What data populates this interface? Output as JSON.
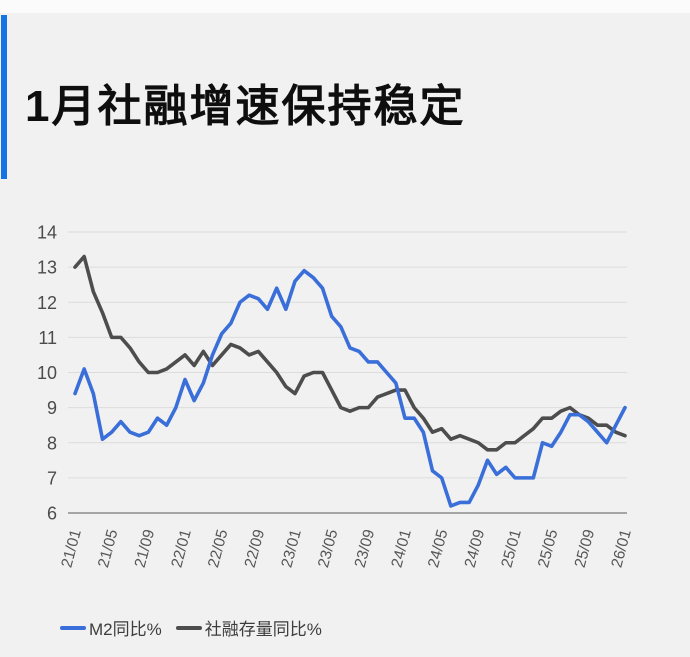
{
  "page": {
    "background": "#f1f1f2",
    "top_strip_color": "#fbfbfb"
  },
  "header": {
    "title": "1月社融增速保持稳定",
    "accent_color": "#1474e6"
  },
  "chart_data": {
    "type": "line",
    "title": "1月社融增速保持稳定",
    "xlabel": "",
    "ylabel": "",
    "ylim": [
      6,
      14
    ],
    "y_ticks": [
      6,
      7,
      8,
      9,
      10,
      11,
      12,
      13,
      14
    ],
    "grid": "horizontal",
    "grid_color": "#dcdcdd",
    "axis_color": "#8c8c8c",
    "tick_label_color": "#4c4c4c",
    "legend_position": "bottom-left",
    "x": [
      "21/01",
      "21/02",
      "21/03",
      "21/04",
      "21/05",
      "21/06",
      "21/07",
      "21/08",
      "21/09",
      "21/10",
      "21/11",
      "21/12",
      "22/01",
      "22/02",
      "22/03",
      "22/04",
      "22/05",
      "22/06",
      "22/07",
      "22/08",
      "22/09",
      "22/10",
      "22/11",
      "22/12",
      "23/01",
      "23/02",
      "23/03",
      "23/04",
      "23/05",
      "23/06",
      "23/07",
      "23/08",
      "23/09",
      "23/10",
      "23/11",
      "23/12",
      "24/01",
      "24/02",
      "24/03",
      "24/04",
      "24/05",
      "24/06",
      "24/07",
      "24/08",
      "24/09",
      "24/10",
      "24/11",
      "24/12",
      "25/01",
      "25/02",
      "25/03",
      "25/04",
      "25/05",
      "25/06",
      "25/07",
      "25/08",
      "25/09",
      "25/10",
      "25/11",
      "25/12",
      "26/01"
    ],
    "x_tick_labels": [
      "21/01",
      "21/05",
      "21/09",
      "22/01",
      "22/05",
      "22/09",
      "23/01",
      "23/05",
      "23/09",
      "24/01",
      "24/05",
      "24/09",
      "25/01",
      "25/05",
      "25/09",
      "26/01"
    ],
    "series": [
      {
        "name": "M2同比%",
        "color": "#3a6ed8",
        "values": [
          9.4,
          10.1,
          9.4,
          8.1,
          8.3,
          8.6,
          8.3,
          8.2,
          8.3,
          8.7,
          8.5,
          9.0,
          9.8,
          9.2,
          9.7,
          10.5,
          11.1,
          11.4,
          12.0,
          12.2,
          12.1,
          11.8,
          12.4,
          11.8,
          12.6,
          12.9,
          12.7,
          12.4,
          11.6,
          11.3,
          10.7,
          10.6,
          10.3,
          10.3,
          10.0,
          9.7,
          8.7,
          8.7,
          8.3,
          7.2,
          7.0,
          6.2,
          6.3,
          6.3,
          6.8,
          7.5,
          7.1,
          7.3,
          7.0,
          7.0,
          7.0,
          8.0,
          7.9,
          8.3,
          8.8,
          8.8,
          8.6,
          8.3,
          8.0,
          8.5,
          9.0
        ]
      },
      {
        "name": "社融存量同比%",
        "color": "#4d4d4d",
        "values": [
          13.0,
          13.3,
          12.3,
          11.7,
          11.0,
          11.0,
          10.7,
          10.3,
          10.0,
          10.0,
          10.1,
          10.3,
          10.5,
          10.2,
          10.6,
          10.2,
          10.5,
          10.8,
          10.7,
          10.5,
          10.6,
          10.3,
          10.0,
          9.6,
          9.4,
          9.9,
          10.0,
          10.0,
          9.5,
          9.0,
          8.9,
          9.0,
          9.0,
          9.3,
          9.4,
          9.5,
          9.5,
          9.0,
          8.7,
          8.3,
          8.4,
          8.1,
          8.2,
          8.1,
          8.0,
          7.8,
          7.8,
          8.0,
          8.0,
          8.2,
          8.4,
          8.7,
          8.7,
          8.9,
          9.0,
          8.8,
          8.7,
          8.5,
          8.5,
          8.3,
          8.2
        ]
      }
    ]
  },
  "legend": {
    "items": [
      {
        "label": "M2同比%",
        "color": "#3a6ed8"
      },
      {
        "label": "社融存量同比%",
        "color": "#4d4d4d"
      }
    ]
  }
}
